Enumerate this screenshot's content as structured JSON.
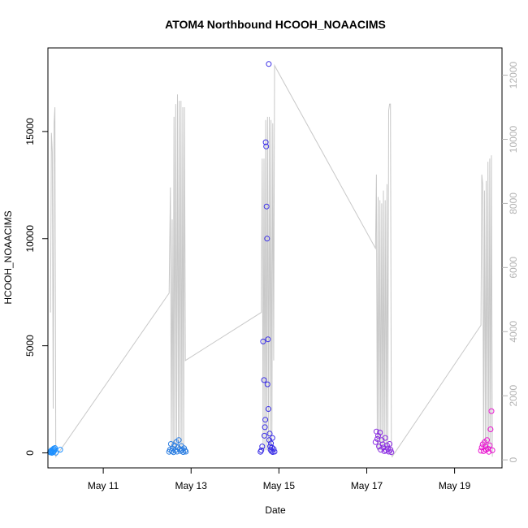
{
  "chart_data": {
    "type": "scatter",
    "title": "ATOM4 Northbound HCOOH_NOAACIMS",
    "xlabel": "Date",
    "ylabel": "HCOOH_NOAACIMS",
    "x_ticks": [
      "May 11",
      "May 13",
      "May 15",
      "May 17",
      "May 19"
    ],
    "x_tick_days": [
      11,
      13,
      15,
      17,
      19
    ],
    "xlim_days": [
      9.74,
      20.08
    ],
    "ylim": [
      -700,
      18900
    ],
    "y_ticks": [
      0,
      5000,
      10000,
      15000
    ],
    "y_tick_labels": [
      "0",
      "5000",
      "10000",
      "15000"
    ],
    "y2_ticks": [
      0,
      2000,
      4000,
      6000,
      8000,
      10000,
      12000
    ],
    "y2_tick_labels": [
      "0",
      "2000",
      "4000",
      "6000",
      "8000",
      "10000",
      "12000"
    ],
    "y2_lim": [
      -250,
      12850
    ],
    "grid": false,
    "line_color": "#c8c8c8",
    "altitude_line": [
      [
        9.8,
        4600
      ],
      [
        9.82,
        10200
      ],
      [
        9.84,
        9600
      ],
      [
        9.86,
        1600
      ],
      [
        9.88,
        10500
      ],
      [
        9.9,
        11000
      ],
      [
        9.92,
        100
      ],
      [
        12.5,
        5200
      ],
      [
        12.53,
        8500
      ],
      [
        12.55,
        400
      ],
      [
        12.57,
        7500
      ],
      [
        12.59,
        300
      ],
      [
        12.61,
        10700
      ],
      [
        12.63,
        300
      ],
      [
        12.65,
        11100
      ],
      [
        12.67,
        400
      ],
      [
        12.69,
        11400
      ],
      [
        12.71,
        300
      ],
      [
        12.73,
        11200
      ],
      [
        12.75,
        300
      ],
      [
        12.77,
        11200
      ],
      [
        12.79,
        300
      ],
      [
        12.81,
        11000
      ],
      [
        12.83,
        300
      ],
      [
        12.85,
        11000
      ],
      [
        12.87,
        3100
      ],
      [
        14.6,
        4600
      ],
      [
        14.62,
        9400
      ],
      [
        14.64,
        300
      ],
      [
        14.66,
        9400
      ],
      [
        14.68,
        300
      ],
      [
        14.7,
        10600
      ],
      [
        14.72,
        300
      ],
      [
        14.74,
        10700
      ],
      [
        14.76,
        300
      ],
      [
        14.78,
        10700
      ],
      [
        14.8,
        300
      ],
      [
        14.82,
        10600
      ],
      [
        14.84,
        300
      ],
      [
        14.86,
        10500
      ],
      [
        14.88,
        3100
      ],
      [
        14.9,
        12300
      ],
      [
        17.2,
        6600
      ],
      [
        17.22,
        8900
      ],
      [
        17.24,
        300
      ],
      [
        17.26,
        8200
      ],
      [
        17.28,
        300
      ],
      [
        17.3,
        8100
      ],
      [
        17.32,
        300
      ],
      [
        17.34,
        8000
      ],
      [
        17.36,
        300
      ],
      [
        17.38,
        8400
      ],
      [
        17.4,
        300
      ],
      [
        17.42,
        8100
      ],
      [
        17.44,
        300
      ],
      [
        17.46,
        8600
      ],
      [
        17.48,
        300
      ],
      [
        17.5,
        10900
      ],
      [
        17.52,
        11100
      ],
      [
        17.54,
        11100
      ],
      [
        17.56,
        300
      ],
      [
        17.58,
        100
      ],
      [
        19.6,
        4200
      ],
      [
        19.62,
        8900
      ],
      [
        19.64,
        8600
      ],
      [
        19.66,
        300
      ],
      [
        19.68,
        8400
      ],
      [
        19.7,
        300
      ],
      [
        19.72,
        8700
      ],
      [
        19.74,
        300
      ],
      [
        19.76,
        9300
      ],
      [
        19.78,
        300
      ],
      [
        19.8,
        9400
      ],
      [
        19.82,
        300
      ],
      [
        19.84,
        9500
      ],
      [
        19.86,
        100
      ]
    ],
    "series": [
      {
        "color": "#1e90ff",
        "points": [
          [
            9.79,
            50
          ],
          [
            9.8,
            20
          ],
          [
            9.81,
            80
          ],
          [
            9.82,
            120
          ],
          [
            9.83,
            0
          ],
          [
            9.84,
            60
          ],
          [
            9.85,
            150
          ],
          [
            9.86,
            40
          ],
          [
            9.87,
            200
          ],
          [
            9.88,
            90
          ],
          [
            9.89,
            170
          ],
          [
            9.9,
            230
          ],
          [
            9.92,
            10
          ],
          [
            10.02,
            150
          ]
        ]
      },
      {
        "color": "#2a7de1",
        "points": [
          [
            12.5,
            50
          ],
          [
            12.52,
            150
          ],
          [
            12.54,
            420
          ],
          [
            12.56,
            80
          ],
          [
            12.58,
            200
          ],
          [
            12.6,
            30
          ],
          [
            12.62,
            350
          ],
          [
            12.64,
            120
          ],
          [
            12.66,
            500
          ],
          [
            12.68,
            60
          ],
          [
            12.7,
            250
          ],
          [
            12.72,
            600
          ],
          [
            12.74,
            180
          ],
          [
            12.76,
            90
          ],
          [
            12.78,
            320
          ],
          [
            12.8,
            140
          ],
          [
            12.82,
            40
          ],
          [
            12.84,
            220
          ],
          [
            12.86,
            110
          ],
          [
            12.88,
            60
          ]
        ]
      },
      {
        "color": "#3a2ee6",
        "points": [
          [
            14.58,
            50
          ],
          [
            14.6,
            120
          ],
          [
            14.62,
            300
          ],
          [
            14.64,
            5200
          ],
          [
            14.66,
            3400
          ],
          [
            14.67,
            800
          ],
          [
            14.68,
            1200
          ],
          [
            14.69,
            1550
          ],
          [
            14.7,
            14500
          ],
          [
            14.71,
            14300
          ],
          [
            14.72,
            11500
          ],
          [
            14.73,
            10000
          ],
          [
            14.74,
            3200
          ],
          [
            14.75,
            5300
          ],
          [
            14.76,
            2050
          ],
          [
            14.77,
            18150
          ],
          [
            14.78,
            600
          ],
          [
            14.79,
            900
          ],
          [
            14.8,
            300
          ],
          [
            14.81,
            150
          ],
          [
            14.82,
            450
          ],
          [
            14.83,
            80
          ],
          [
            14.84,
            250
          ],
          [
            14.85,
            700
          ],
          [
            14.86,
            40
          ],
          [
            14.88,
            180
          ],
          [
            14.9,
            60
          ]
        ]
      },
      {
        "color": "#8a2be2",
        "points": [
          [
            17.2,
            500
          ],
          [
            17.22,
            1000
          ],
          [
            17.24,
            650
          ],
          [
            17.26,
            800
          ],
          [
            17.28,
            300
          ],
          [
            17.3,
            950
          ],
          [
            17.32,
            150
          ],
          [
            17.34,
            600
          ],
          [
            17.36,
            400
          ],
          [
            17.38,
            250
          ],
          [
            17.4,
            80
          ],
          [
            17.42,
            700
          ],
          [
            17.44,
            120
          ],
          [
            17.46,
            350
          ],
          [
            17.48,
            200
          ],
          [
            17.5,
            60
          ],
          [
            17.52,
            420
          ],
          [
            17.54,
            150
          ],
          [
            17.56,
            30
          ]
        ]
      },
      {
        "color": "#e916d0",
        "points": [
          [
            19.6,
            100
          ],
          [
            19.62,
            250
          ],
          [
            19.64,
            400
          ],
          [
            19.66,
            80
          ],
          [
            19.68,
            500
          ],
          [
            19.7,
            300
          ],
          [
            19.72,
            150
          ],
          [
            19.74,
            600
          ],
          [
            19.76,
            200
          ],
          [
            19.78,
            50
          ],
          [
            19.8,
            350
          ],
          [
            19.82,
            1100
          ],
          [
            19.84,
            1950
          ],
          [
            19.86,
            120
          ]
        ]
      }
    ]
  }
}
